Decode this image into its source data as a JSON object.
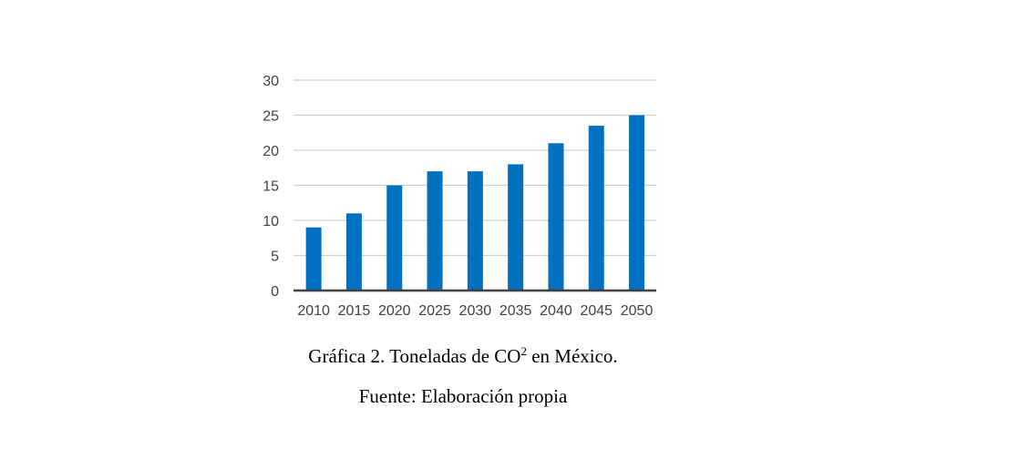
{
  "chart_data": {
    "type": "bar",
    "categories": [
      "2010",
      "2015",
      "2020",
      "2025",
      "2030",
      "2035",
      "2040",
      "2045",
      "2050"
    ],
    "values": [
      9,
      11,
      15,
      17,
      17,
      18,
      21,
      23.5,
      25
    ],
    "yticks": [
      "0",
      "5",
      "10",
      "15",
      "20",
      "25",
      "30"
    ],
    "ylim": [
      0,
      30
    ],
    "grid": true,
    "legend": "none",
    "title": "",
    "xlabel": "",
    "ylabel": "",
    "bar_color": "#0070c0",
    "grid_color": "#d0d0d0",
    "axis_color": "#404040"
  },
  "caption": {
    "prefix": "Gráfica 2. Toneladas de CO",
    "superscript": "2",
    "suffix": " en México."
  },
  "source": "Fuente: Elaboración propia"
}
